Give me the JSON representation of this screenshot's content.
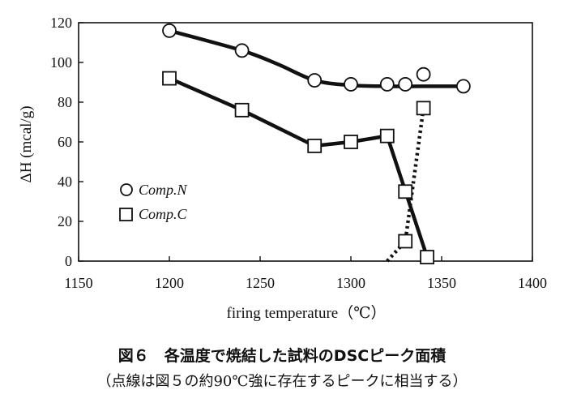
{
  "chart_data": {
    "type": "line",
    "xlabel": "firing temperature（℃）",
    "ylabel": "ΔH (mcal/g)",
    "xlim": [
      1150,
      1400
    ],
    "ylim": [
      0,
      120
    ],
    "xticks": [
      1150,
      1200,
      1250,
      1300,
      1350,
      1400
    ],
    "yticks": [
      0,
      20,
      40,
      60,
      80,
      100,
      120
    ],
    "grid": false,
    "legend_position": "left-middle",
    "series": [
      {
        "name": "Comp.N",
        "marker": "circle",
        "points": [
          [
            1200,
            116
          ],
          [
            1240,
            106
          ],
          [
            1280,
            91
          ],
          [
            1300,
            89
          ],
          [
            1320,
            89
          ],
          [
            1330,
            89
          ],
          [
            1340,
            94
          ],
          [
            1362,
            88
          ]
        ],
        "curve": [
          [
            1200,
            116
          ],
          [
            1240,
            106
          ],
          [
            1260,
            99
          ],
          [
            1280,
            91
          ],
          [
            1300,
            88.5
          ],
          [
            1320,
            88
          ],
          [
            1340,
            88
          ],
          [
            1362,
            88
          ]
        ]
      },
      {
        "name": "Comp.C",
        "marker": "square",
        "points": [
          [
            1200,
            92
          ],
          [
            1240,
            76
          ],
          [
            1280,
            58
          ],
          [
            1300,
            60
          ],
          [
            1320,
            63
          ],
          [
            1330,
            35
          ],
          [
            1330,
            10
          ],
          [
            1340,
            77
          ],
          [
            1342,
            2
          ]
        ],
        "curve": [
          [
            1200,
            92
          ],
          [
            1240,
            76
          ],
          [
            1280,
            58
          ],
          [
            1300,
            60
          ],
          [
            1320,
            63
          ],
          [
            1342,
            2
          ]
        ],
        "dotted": [
          [
            1320,
            0
          ],
          [
            1330,
            10
          ],
          [
            1340,
            77
          ]
        ]
      }
    ]
  },
  "caption": {
    "line1": "図６　各温度で焼結した試料のDSCピーク面積",
    "line2": "（点線は図５の約90℃強に存在するピークに相当する）"
  }
}
